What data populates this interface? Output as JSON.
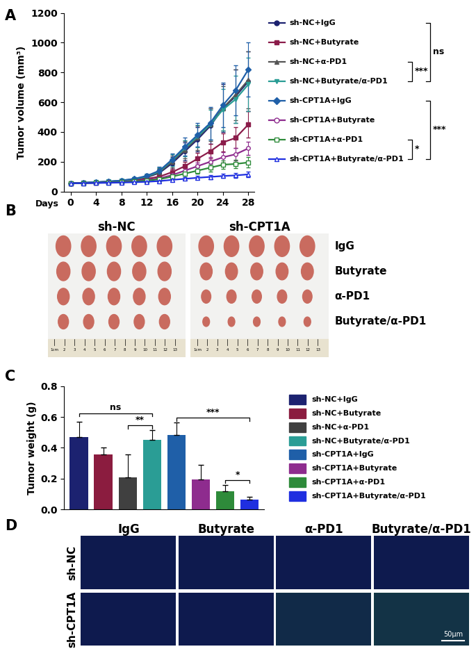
{
  "chart_data": [
    {
      "title": "A",
      "type": "line",
      "x_label": "Days",
      "y_label": "Tumor volume (mm³)",
      "x": [
        0,
        2,
        4,
        6,
        8,
        10,
        12,
        14,
        16,
        18,
        20,
        22,
        24,
        26,
        28
      ],
      "xlim": [
        -1,
        29
      ],
      "xticks": [
        0,
        4,
        8,
        12,
        16,
        20,
        24,
        28
      ],
      "ylim": [
        0,
        1200
      ],
      "yticks": [
        0,
        200,
        400,
        600,
        800,
        1000,
        1200
      ],
      "legend": "right",
      "series": [
        {
          "name": "sh-NC+IgG",
          "color": "#1c2270",
          "marker": "circle",
          "values": [
            55,
            58,
            62,
            66,
            72,
            80,
            95,
            125,
            190,
            270,
            350,
            440,
            560,
            640,
            740
          ],
          "errors": [
            5,
            5,
            6,
            6,
            8,
            10,
            15,
            25,
            40,
            60,
            80,
            120,
            160,
            180,
            200
          ]
        },
        {
          "name": "sh-NC+Butyrate",
          "color": "#8b1c4a",
          "marker": "square",
          "values": [
            55,
            57,
            60,
            64,
            68,
            75,
            85,
            100,
            130,
            170,
            220,
            270,
            330,
            360,
            450
          ],
          "errors": [
            5,
            5,
            5,
            6,
            6,
            8,
            10,
            15,
            20,
            30,
            40,
            50,
            60,
            70,
            90
          ]
        },
        {
          "name": "sh-NC+α-PD1",
          "color": "#555555",
          "marker": "triangle_up",
          "values": [
            55,
            58,
            62,
            66,
            72,
            82,
            98,
            130,
            200,
            280,
            360,
            450,
            560,
            650,
            750
          ],
          "errors": [
            5,
            5,
            6,
            6,
            8,
            10,
            15,
            25,
            40,
            60,
            80,
            110,
            150,
            170,
            190
          ]
        },
        {
          "name": "sh-NC+Butyrate/α-PD1",
          "color": "#2a9d95",
          "marker": "triangle_down",
          "values": [
            55,
            58,
            62,
            67,
            73,
            83,
            100,
            135,
            210,
            290,
            370,
            450,
            550,
            620,
            720
          ],
          "errors": [
            5,
            5,
            6,
            6,
            8,
            10,
            15,
            25,
            40,
            55,
            75,
            100,
            140,
            160,
            180
          ]
        },
        {
          "name": "sh-CPT1A+IgG",
          "color": "#1f5fa8",
          "marker": "diamond",
          "values": [
            55,
            58,
            62,
            67,
            74,
            85,
            105,
            140,
            215,
            300,
            380,
            460,
            580,
            680,
            820
          ],
          "errors": [
            5,
            5,
            6,
            7,
            8,
            10,
            15,
            25,
            40,
            60,
            80,
            110,
            150,
            170,
            180
          ]
        },
        {
          "name": "sh-CPT1A+Butyrate",
          "color": "#8e2c8e",
          "marker": "open_circle",
          "values": [
            55,
            56,
            58,
            61,
            64,
            70,
            78,
            88,
            110,
            140,
            170,
            200,
            230,
            250,
            290
          ],
          "errors": [
            5,
            5,
            5,
            5,
            6,
            6,
            8,
            10,
            15,
            20,
            25,
            30,
            35,
            40,
            45
          ]
        },
        {
          "name": "sh-CPT1A+α-PD1",
          "color": "#2e8b3a",
          "marker": "open_square",
          "values": [
            55,
            56,
            58,
            60,
            63,
            67,
            73,
            82,
            100,
            120,
            140,
            160,
            180,
            185,
            195
          ],
          "errors": [
            5,
            5,
            5,
            5,
            5,
            6,
            7,
            8,
            10,
            15,
            20,
            25,
            30,
            30,
            35
          ]
        },
        {
          "name": "sh-CPT1A+Butyrate/α-PD1",
          "color": "#1f2fe0",
          "marker": "open_triangle_up",
          "values": [
            55,
            56,
            57,
            58,
            60,
            62,
            65,
            70,
            78,
            85,
            92,
            98,
            104,
            108,
            115
          ],
          "errors": [
            4,
            4,
            4,
            4,
            5,
            5,
            5,
            6,
            8,
            10,
            12,
            14,
            15,
            16,
            18
          ]
        }
      ],
      "brackets": [
        {
          "from": "sh-NC+IgG",
          "to": "sh-NC+Butyrate/α-PD1",
          "label": "ns"
        },
        {
          "from": "sh-NC+α-PD1",
          "to": "sh-NC+Butyrate/α-PD1",
          "label": "***"
        },
        {
          "from": "sh-CPT1A+IgG",
          "to": "sh-CPT1A+Butyrate/α-PD1",
          "label": "***"
        },
        {
          "from": "sh-CPT1A+α-PD1",
          "to": "sh-CPT1A+Butyrate/α-PD1",
          "label": "*"
        }
      ]
    },
    {
      "title": "B",
      "type": "photo",
      "groups": [
        "sh-NC",
        "sh-CPT1A"
      ],
      "rows": [
        "IgG",
        "Butyrate",
        "α-PD1",
        "Butyrate/α-PD1"
      ],
      "ruler_labels": [
        "1cm",
        "2",
        "3",
        "4",
        "5",
        "6",
        "7",
        "8",
        "9",
        "10",
        "11",
        "12",
        "13"
      ]
    },
    {
      "title": "C",
      "type": "bar",
      "y_label": "Tumor weight (g)",
      "categories": [
        "sh-NC+IgG",
        "sh-NC+Butyrate",
        "sh-NC+α-PD1",
        "sh-NC+Butyrate/α-PD1",
        "sh-CPT1A+IgG",
        "sh-CPT1A+Butyrate",
        "sh-CPT1A+α-PD1",
        "sh-CPT1A+Butyrate/α-PD1"
      ],
      "values": [
        0.47,
        0.355,
        0.21,
        0.45,
        0.485,
        0.195,
        0.12,
        0.065
      ],
      "errors": [
        0.1,
        0.045,
        0.145,
        0.065,
        0.08,
        0.095,
        0.04,
        0.015
      ],
      "colors": [
        "#1c2270",
        "#8b1c3f",
        "#404040",
        "#2a9d95",
        "#1f5fa8",
        "#8e2c8e",
        "#2e8b3a",
        "#1f2fe0"
      ],
      "ylim": [
        0,
        0.8
      ],
      "yticks": [
        0.0,
        0.2,
        0.4,
        0.6,
        0.8
      ],
      "tick_labels": "y",
      "legend": "right",
      "brackets": [
        {
          "from": "sh-NC+IgG",
          "to": "sh-NC+Butyrate/α-PD1",
          "label": "ns"
        },
        {
          "from": "sh-NC+α-PD1",
          "to": "sh-NC+Butyrate/α-PD1",
          "label": "**"
        },
        {
          "from": "sh-CPT1A+IgG",
          "to": "sh-CPT1A+Butyrate/α-PD1",
          "label": "***"
        },
        {
          "from": "sh-CPT1A+α-PD1",
          "to": "sh-CPT1A+Butyrate/α-PD1",
          "label": "*"
        }
      ]
    },
    {
      "title": "D",
      "type": "micrograph",
      "columns": [
        "IgG",
        "Butyrate",
        "α-PD1",
        "Butyrate/α-PD1"
      ],
      "rows": [
        "sh-NC",
        "sh-CPT1A"
      ],
      "scale_bar": "50μm"
    }
  ]
}
